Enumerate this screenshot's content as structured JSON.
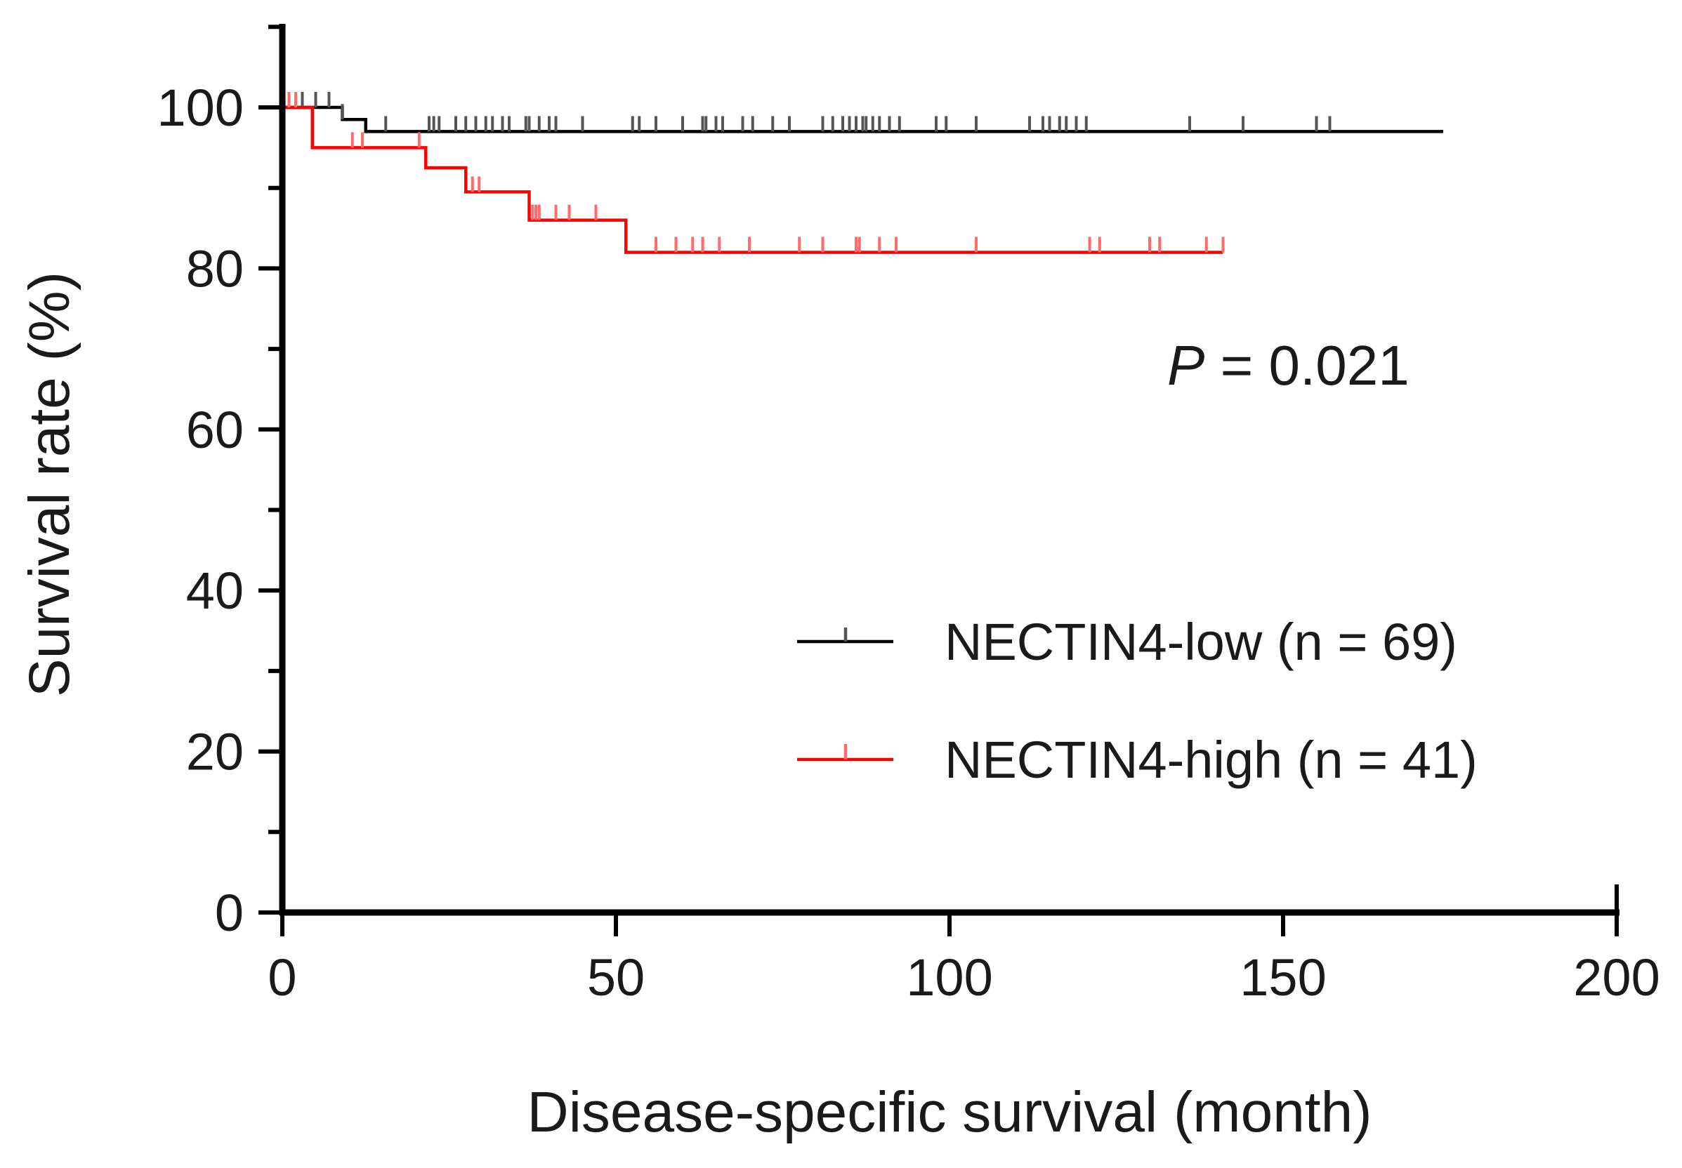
{
  "chart_data": {
    "type": "line",
    "subtype": "kaplan-meier",
    "title": "",
    "xlabel": "Disease-specific survival (month)",
    "ylabel": "Survival rate (%)",
    "xlim": [
      0,
      200
    ],
    "ylim": [
      0,
      110
    ],
    "x_ticks": [
      0,
      50,
      100,
      150,
      200
    ],
    "x_tick_labels": [
      "0",
      "50",
      "100",
      "150",
      "200"
    ],
    "y_ticks": [
      0,
      20,
      40,
      60,
      80,
      100
    ],
    "y_tick_labels": [
      "0",
      "20",
      "40",
      "60",
      "80",
      "100"
    ],
    "y_minor_step": 10,
    "x_minor_step": 50,
    "grid": false,
    "legend_position": "lower-right",
    "annotation": {
      "italic": "P",
      "rest": " = 0.021"
    },
    "series": [
      {
        "name": "NECTIN4-low (n = 69)",
        "color": "#000000",
        "censor_color": "#555555",
        "steps": [
          [
            0,
            100
          ],
          [
            9,
            100
          ],
          [
            9,
            98.5
          ],
          [
            12.5,
            98.5
          ],
          [
            12.5,
            97
          ],
          [
            174,
            97
          ]
        ],
        "censors": [
          1,
          3,
          5,
          7,
          9,
          15.5,
          22,
          22.7,
          23.5,
          26,
          27.5,
          29,
          30.5,
          31.5,
          33,
          34,
          36.5,
          37,
          38.5,
          40,
          41,
          45,
          52.5,
          53.5,
          56,
          60,
          63,
          63.5,
          65,
          66,
          69,
          70.5,
          73.5,
          76,
          81,
          82.5,
          84,
          85,
          86,
          87,
          87.5,
          88.5,
          89.5,
          91,
          92.5,
          98,
          99.5,
          104,
          112,
          114,
          115,
          116.5,
          117.5,
          119,
          120.5,
          136,
          144,
          155,
          157
        ]
      },
      {
        "name": "NECTIN4-high (n = 41)",
        "color": "#ff0000",
        "censor_color": "#ff6b6b",
        "steps": [
          [
            0,
            100
          ],
          [
            4.5,
            100
          ],
          [
            4.5,
            95
          ],
          [
            21.5,
            95
          ],
          [
            21.5,
            92.5
          ],
          [
            27.5,
            92.5
          ],
          [
            27.5,
            89.5
          ],
          [
            37,
            89.5
          ],
          [
            37,
            86
          ],
          [
            51.5,
            86
          ],
          [
            51.5,
            82
          ],
          [
            141,
            82
          ]
        ],
        "censors": [
          1,
          2,
          10.5,
          12,
          20.5,
          28.5,
          29.5,
          37.5,
          38,
          38.5,
          41,
          43,
          47,
          56,
          59,
          61.5,
          63,
          65.5,
          70,
          77.5,
          81,
          86,
          86.5,
          89.5,
          92,
          104,
          121,
          122.5,
          130,
          131.5,
          138.5,
          141
        ]
      }
    ]
  }
}
